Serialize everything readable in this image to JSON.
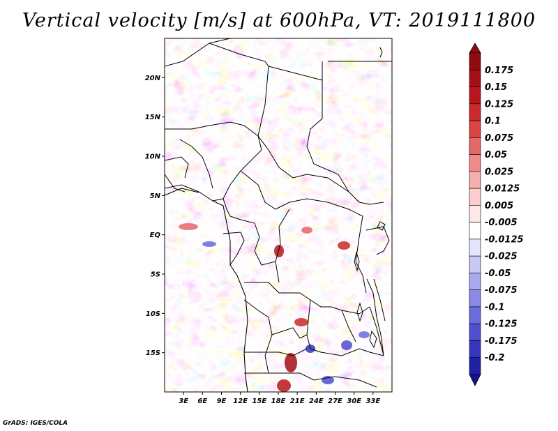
{
  "title": "Vertical velocity [m/s] at 600hPa, VT: 2019111800",
  "credit": "GrADS: IGES/COLA",
  "map": {
    "extent": {
      "lon_min": 0,
      "lon_max": 36,
      "lat_min": -20,
      "lat_max": 25
    },
    "lat_ticks": [
      {
        "value": 20,
        "label": "20N"
      },
      {
        "value": 15,
        "label": "15N"
      },
      {
        "value": 10,
        "label": "10N"
      },
      {
        "value": 5,
        "label": "5N"
      },
      {
        "value": 0,
        "label": "EQ"
      },
      {
        "value": -5,
        "label": "5S"
      },
      {
        "value": -10,
        "label": "10S"
      },
      {
        "value": -15,
        "label": "15S"
      }
    ],
    "lon_ticks": [
      {
        "value": 3,
        "label": "3E"
      },
      {
        "value": 6,
        "label": "6E"
      },
      {
        "value": 9,
        "label": "9E"
      },
      {
        "value": 12,
        "label": "12E"
      },
      {
        "value": 15,
        "label": "15E"
      },
      {
        "value": 18,
        "label": "18E"
      },
      {
        "value": 21,
        "label": "21E"
      },
      {
        "value": 24,
        "label": "24E"
      },
      {
        "value": 27,
        "label": "27E"
      },
      {
        "value": 30,
        "label": "30E"
      },
      {
        "value": 33,
        "label": "33E"
      }
    ]
  },
  "colorbar": {
    "levels": [
      {
        "label": "0.175",
        "color": "#a50f15"
      },
      {
        "label": "0.15",
        "color": "#b8161c"
      },
      {
        "label": "0.125",
        "color": "#cb2a2a"
      },
      {
        "label": "0.1",
        "color": "#dc4444"
      },
      {
        "label": "0.075",
        "color": "#e66767"
      },
      {
        "label": "0.05",
        "color": "#ef8b8b"
      },
      {
        "label": "0.025",
        "color": "#f6aeae"
      },
      {
        "label": "0.0125",
        "color": "#fbcdcd"
      },
      {
        "label": "0.005",
        "color": "#fde8e8"
      },
      {
        "label": "-0.005",
        "color": "#ffffff"
      },
      {
        "label": "-0.0125",
        "color": "#e4e4fb"
      },
      {
        "label": "-0.025",
        "color": "#c8c8f6"
      },
      {
        "label": "-0.05",
        "color": "#a9a9ef"
      },
      {
        "label": "-0.075",
        "color": "#8a8ae6"
      },
      {
        "label": "-0.1",
        "color": "#6b6bdc"
      },
      {
        "label": "-0.125",
        "color": "#4f4fd0"
      },
      {
        "label": "-0.175",
        "color": "#3535bd"
      },
      {
        "label": "-0.2",
        "color": "#2020a6"
      }
    ],
    "top_color": "#8f0b10",
    "bottom_color": "#14148c"
  }
}
